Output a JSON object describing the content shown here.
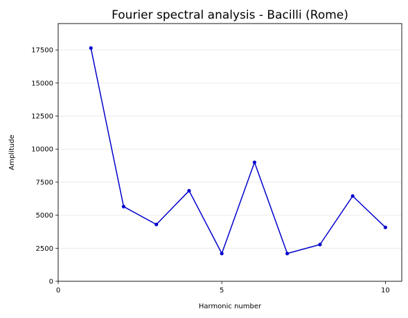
{
  "chart_data": {
    "type": "line",
    "title": "Fourier spectral analysis - Bacilli (Rome)",
    "xlabel": "Harmonic number",
    "ylabel": "Amplitude",
    "xlim": [
      0,
      10.5
    ],
    "ylim": [
      0,
      19500
    ],
    "x_ticks": [
      0,
      5,
      10
    ],
    "y_ticks": [
      0,
      2500,
      5000,
      7500,
      10000,
      12500,
      15000,
      17500
    ],
    "grid": "horizontal",
    "series": [
      {
        "color": "#0000cc",
        "marker": "circle",
        "x": [
          1,
          2,
          3,
          4,
          5,
          6,
          7,
          8,
          9,
          10
        ],
        "y": [
          17650,
          5650,
          4300,
          6850,
          2100,
          9000,
          2100,
          2780,
          6450,
          4080
        ]
      }
    ]
  }
}
